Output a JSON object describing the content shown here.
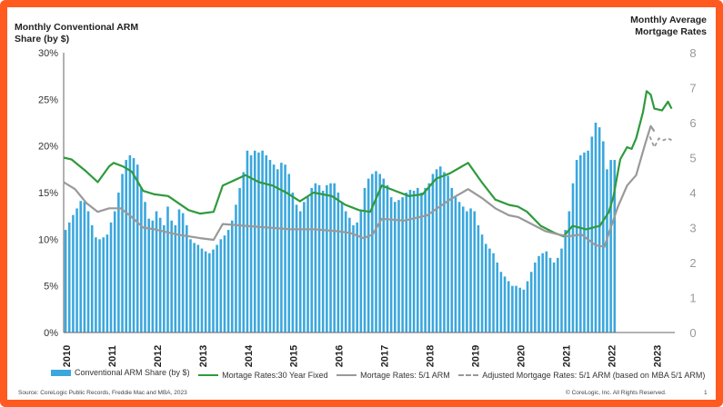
{
  "chart_data": {
    "type": "bar+line",
    "ylabel_left": "Monthly Conventional ARM Share (by $)",
    "ylabel_right": "Monthly Average Mortgage Rates",
    "left_axis": {
      "ylim": [
        0,
        30
      ],
      "ticks": [
        "0%",
        "5%",
        "10%",
        "15%",
        "20%",
        "25%",
        "30%"
      ]
    },
    "right_axis": {
      "ylim": [
        0,
        8
      ],
      "ticks": [
        "0",
        "1",
        "2",
        "3",
        "4",
        "5",
        "6",
        "7",
        "8"
      ]
    },
    "x_ticks": [
      "2010",
      "2011",
      "2012",
      "2013",
      "2014",
      "2015",
      "2016",
      "2017",
      "2018",
      "2019",
      "2020",
      "2021",
      "2022",
      "2023"
    ],
    "grid": false,
    "legend_position": "bottom",
    "series": [
      {
        "name": "Conventional ARM Share (by $)",
        "kind": "bar",
        "axis": "left",
        "color": "#3aa7dd",
        "start": "2010-01",
        "values": [
          11.0,
          11.8,
          12.6,
          13.3,
          14.1,
          14.0,
          13.0,
          11.5,
          10.2,
          10.0,
          10.2,
          10.5,
          11.8,
          13.0,
          15.0,
          17.0,
          18.5,
          19.0,
          18.7,
          18.0,
          15.5,
          14.0,
          12.2,
          12.0,
          13.0,
          12.3,
          11.5,
          13.5,
          12.0,
          11.5,
          13.2,
          12.8,
          11.5,
          10.0,
          9.6,
          9.4,
          9.0,
          8.7,
          8.5,
          8.9,
          9.4,
          10.0,
          10.4,
          11.0,
          12.0,
          13.7,
          15.5,
          17.2,
          19.5,
          19.0,
          19.5,
          19.3,
          19.5,
          19.0,
          18.5,
          18.0,
          17.5,
          18.2,
          18.0,
          17.0,
          15.0,
          13.7,
          13.0,
          14.0,
          14.5,
          15.5,
          16.0,
          15.8,
          15.2,
          15.8,
          16.0,
          16.0,
          15.0,
          14.0,
          13.0,
          12.3,
          11.5,
          11.8,
          13.0,
          15.5,
          16.5,
          17.0,
          17.3,
          17.0,
          16.5,
          15.8,
          14.5,
          14.0,
          14.2,
          14.5,
          15.0,
          15.3,
          15.2,
          15.5,
          15.0,
          15.5,
          16.0,
          17.0,
          17.5,
          17.8,
          17.2,
          16.8,
          15.5,
          14.5,
          14.0,
          13.5,
          13.0,
          13.3,
          13.0,
          11.5,
          10.5,
          9.5,
          9.0,
          8.5,
          7.5,
          6.5,
          6.0,
          5.5,
          5.0,
          5.0,
          4.8,
          4.6,
          5.5,
          6.5,
          7.5,
          8.2,
          8.5,
          8.7,
          8.0,
          7.5,
          8.0,
          9.0,
          11.0,
          13.0,
          16.0,
          18.5,
          19.0,
          19.3,
          19.5,
          21.0,
          22.5,
          22.0,
          20.5,
          17.5,
          18.5,
          18.5
        ]
      },
      {
        "name": "Mortage Rates:30 Year Fixed",
        "kind": "line",
        "axis": "right",
        "color": "#2e9a3c",
        "points": [
          [
            2010.0,
            5.0
          ],
          [
            2010.17,
            4.95
          ],
          [
            2010.5,
            4.6
          ],
          [
            2010.75,
            4.3
          ],
          [
            2011.0,
            4.75
          ],
          [
            2011.1,
            4.85
          ],
          [
            2011.3,
            4.75
          ],
          [
            2011.5,
            4.6
          ],
          [
            2011.75,
            4.05
          ],
          [
            2012.0,
            3.95
          ],
          [
            2012.3,
            3.9
          ],
          [
            2012.75,
            3.5
          ],
          [
            2013.0,
            3.4
          ],
          [
            2013.3,
            3.45
          ],
          [
            2013.5,
            4.2
          ],
          [
            2014.0,
            4.5
          ],
          [
            2014.3,
            4.3
          ],
          [
            2014.6,
            4.2
          ],
          [
            2014.9,
            4.0
          ],
          [
            2015.2,
            3.75
          ],
          [
            2015.5,
            4.0
          ],
          [
            2015.9,
            3.9
          ],
          [
            2016.2,
            3.65
          ],
          [
            2016.5,
            3.5
          ],
          [
            2016.75,
            3.45
          ],
          [
            2017.0,
            4.2
          ],
          [
            2017.3,
            4.05
          ],
          [
            2017.6,
            3.9
          ],
          [
            2017.9,
            3.95
          ],
          [
            2018.2,
            4.4
          ],
          [
            2018.5,
            4.55
          ],
          [
            2018.9,
            4.85
          ],
          [
            2019.2,
            4.3
          ],
          [
            2019.5,
            3.8
          ],
          [
            2019.8,
            3.65
          ],
          [
            2020.0,
            3.6
          ],
          [
            2020.2,
            3.45
          ],
          [
            2020.5,
            3.05
          ],
          [
            2020.8,
            2.85
          ],
          [
            2021.0,
            2.75
          ],
          [
            2021.2,
            3.05
          ],
          [
            2021.5,
            2.95
          ],
          [
            2021.8,
            3.05
          ],
          [
            2022.0,
            3.45
          ],
          [
            2022.1,
            3.9
          ],
          [
            2022.25,
            4.95
          ],
          [
            2022.4,
            5.3
          ],
          [
            2022.5,
            5.25
          ],
          [
            2022.6,
            5.55
          ],
          [
            2022.75,
            6.3
          ],
          [
            2022.83,
            6.9
          ],
          [
            2022.92,
            6.8
          ],
          [
            2023.0,
            6.4
          ],
          [
            2023.17,
            6.35
          ],
          [
            2023.3,
            6.6
          ],
          [
            2023.38,
            6.4
          ]
        ]
      },
      {
        "name": "Mortage Rates: 5/1 ARM",
        "kind": "line",
        "axis": "right",
        "color": "#999999",
        "points": [
          [
            2010.0,
            4.3
          ],
          [
            2010.25,
            4.1
          ],
          [
            2010.5,
            3.7
          ],
          [
            2010.75,
            3.45
          ],
          [
            2011.0,
            3.55
          ],
          [
            2011.25,
            3.55
          ],
          [
            2011.5,
            3.3
          ],
          [
            2011.75,
            3.0
          ],
          [
            2012.0,
            2.95
          ],
          [
            2012.5,
            2.8
          ],
          [
            2013.0,
            2.7
          ],
          [
            2013.3,
            2.65
          ],
          [
            2013.5,
            3.1
          ],
          [
            2014.0,
            3.05
          ],
          [
            2014.5,
            3.0
          ],
          [
            2015.0,
            2.95
          ],
          [
            2015.5,
            2.95
          ],
          [
            2016.0,
            2.9
          ],
          [
            2016.3,
            2.85
          ],
          [
            2016.6,
            2.7
          ],
          [
            2016.8,
            2.8
          ],
          [
            2017.0,
            3.25
          ],
          [
            2017.5,
            3.2
          ],
          [
            2018.0,
            3.35
          ],
          [
            2018.5,
            3.8
          ],
          [
            2018.9,
            4.1
          ],
          [
            2019.2,
            3.85
          ],
          [
            2019.5,
            3.55
          ],
          [
            2019.8,
            3.35
          ],
          [
            2020.0,
            3.3
          ],
          [
            2020.3,
            3.1
          ],
          [
            2020.6,
            2.9
          ],
          [
            2020.9,
            2.8
          ],
          [
            2021.1,
            2.75
          ],
          [
            2021.4,
            2.8
          ],
          [
            2021.7,
            2.5
          ],
          [
            2021.9,
            2.45
          ],
          [
            2022.0,
            2.85
          ],
          [
            2022.2,
            3.6
          ],
          [
            2022.4,
            4.2
          ],
          [
            2022.6,
            4.5
          ],
          [
            2022.8,
            5.4
          ],
          [
            2022.92,
            5.9
          ],
          [
            2023.0,
            5.75
          ]
        ]
      },
      {
        "name": "Adjusted Mortgage Rates: 5/1 ARM (based on MBA 5/1 ARM)",
        "kind": "dashed-line",
        "axis": "right",
        "color": "#999999",
        "points": [
          [
            2022.9,
            5.6
          ],
          [
            2023.0,
            5.3
          ],
          [
            2023.1,
            5.55
          ],
          [
            2023.2,
            5.5
          ],
          [
            2023.3,
            5.55
          ],
          [
            2023.38,
            5.5
          ]
        ]
      }
    ]
  },
  "titles": {
    "left": "Monthly Conventional ARM Share (by $)",
    "right": "Monthly Average Mortgage Rates"
  },
  "legend": [
    {
      "label": "Conventional ARM Share (by $)",
      "style": "bar",
      "color": "#3aa7dd"
    },
    {
      "label": "Mortage Rates:30 Year Fixed",
      "style": "line",
      "color": "#2e9a3c"
    },
    {
      "label": "Mortage Rates: 5/1 ARM",
      "style": "line",
      "color": "#999999"
    },
    {
      "label": "Adjusted Mortgage Rates: 5/1 ARM (based on MBA 5/1 ARM)",
      "style": "dash",
      "color": "#999999"
    }
  ],
  "footer": {
    "source": "Source: CoreLogic Public Records, Freddie Mac and MBA, 2023",
    "copyright": "© CoreLogic, Inc. All Rights Reserved.",
    "page": "1"
  },
  "colors": {
    "frame": "#ff5a1f",
    "bars": "#3aa7dd",
    "fixed30": "#2e9a3c",
    "arm51": "#999999"
  }
}
